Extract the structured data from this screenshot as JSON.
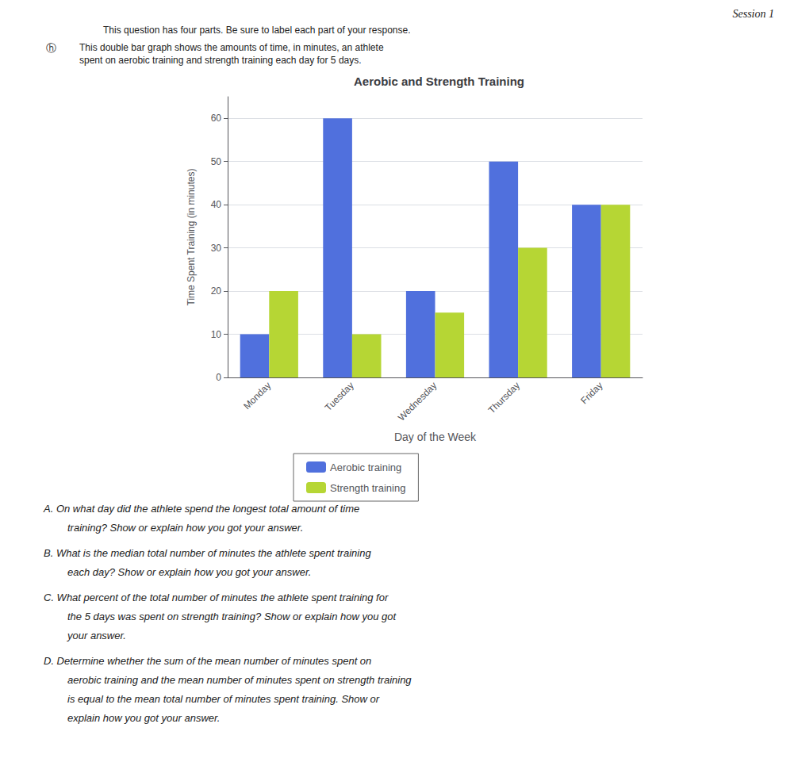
{
  "chart_data": {
    "type": "bar",
    "title": "Aerobic and Strength Training",
    "xlabel": "Day of the Week",
    "ylabel": "Time Spent Training (in minutes)",
    "categories": [
      "Monday",
      "Tuesday",
      "Wednesday",
      "Thursday",
      "Friday"
    ],
    "series": [
      {
        "name": "Aerobic training",
        "values": [
          10,
          60,
          20,
          50,
          40
        ]
      },
      {
        "name": "Strength training",
        "values": [
          20,
          10,
          15,
          30,
          40
        ]
      }
    ],
    "ylim": [
      0,
      65
    ],
    "yticks": [
      0,
      10,
      20,
      30,
      40,
      50,
      60
    ],
    "grid": true,
    "legend": "bottom",
    "annotations": [
      "Session 1",
      "This question has four parts. Be sure to label each part of your response.",
      "ⓗ",
      "This double bar graph shows the amounts of time, in minutes, an athlete",
      "spent on aerobic training and strength training each day for 5 days.",
      "A. On what day did the athlete spend the longest total amount of time",
      "training? Show or explain how you got your answer.",
      "B. What is the median total number of minutes the athlete spent training",
      "each day? Show or explain how you got your answer.",
      "C. What percent of the total number of minutes the athlete spent training for",
      "the 5 days was spent on strength training? Show or explain how you got",
      "your answer.",
      "D. Determine whether the sum of the mean number of minutes spent on",
      "aerobic training and the mean number of minutes spent on strength training",
      "is equal to the mean total number of minutes spent training. Show or",
      "explain how you got your answer."
    ]
  }
}
